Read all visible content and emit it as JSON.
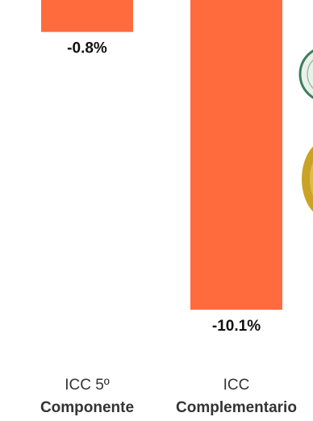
{
  "chart_data": {
    "type": "bar",
    "categories": [
      [
        "ICC 5º",
        "Componente"
      ],
      [
        "ICC",
        "Complementario"
      ]
    ],
    "values": [
      -0.8,
      -10.1
    ],
    "data_labels": [
      "-0.8%",
      "-10.1%"
    ],
    "ylim": [
      -10.1,
      0
    ],
    "bar_color": "#ff6b3d",
    "grid": false,
    "title": "",
    "xlabel": "",
    "ylabel": ""
  },
  "decorations": [
    {
      "name": "seal-logo-partial",
      "color": "#3e7d5a"
    },
    {
      "name": "gold-medal-partial",
      "color": "#c9a227"
    }
  ]
}
